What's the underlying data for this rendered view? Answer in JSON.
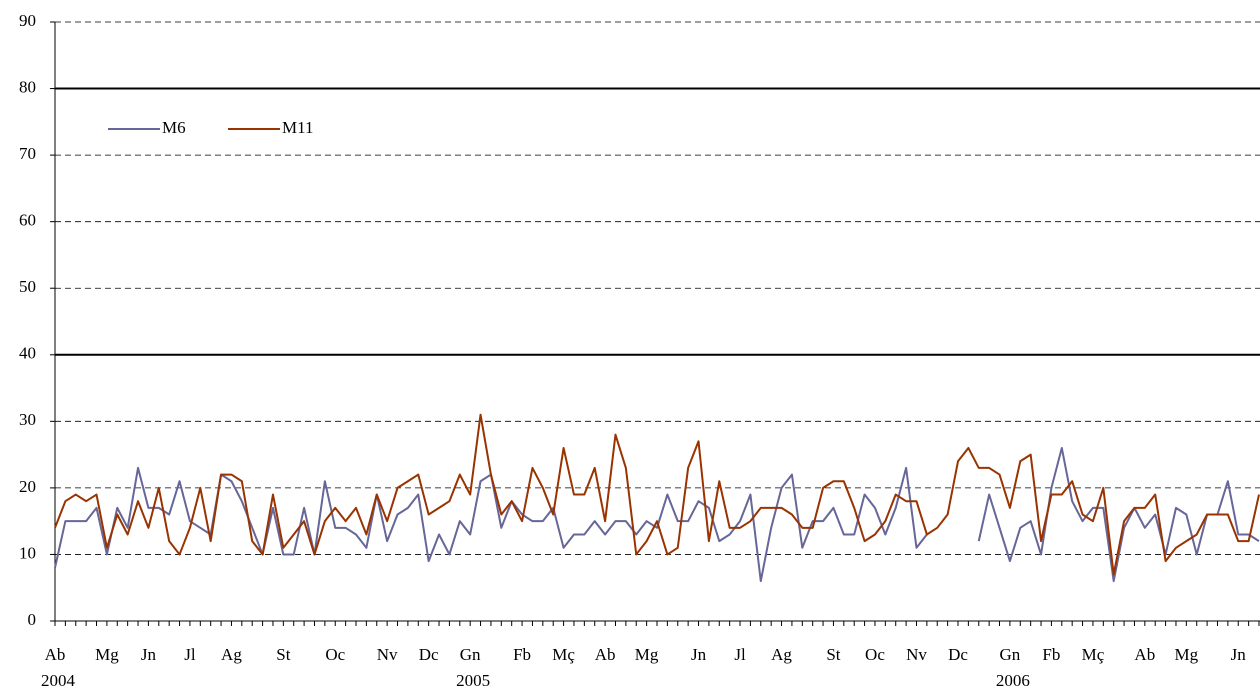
{
  "chart_data": {
    "type": "line",
    "categories": [
      "Ab",
      null,
      null,
      null,
      null,
      "Mg",
      null,
      null,
      null,
      "Jn",
      null,
      null,
      null,
      "Jl",
      null,
      null,
      null,
      "Ag",
      null,
      null,
      null,
      null,
      "St",
      null,
      null,
      null,
      null,
      "Oc",
      null,
      null,
      null,
      null,
      "Nv",
      null,
      null,
      null,
      "Dc",
      null,
      null,
      null,
      "Gn",
      null,
      null,
      null,
      null,
      "Fb",
      null,
      null,
      null,
      "Mç",
      null,
      null,
      null,
      "Ab",
      null,
      null,
      null,
      "Mg",
      null,
      null,
      null,
      null,
      "Jn",
      null,
      null,
      null,
      "Jl",
      null,
      null,
      null,
      "Ag",
      null,
      null,
      null,
      null,
      "St",
      null,
      null,
      null,
      "Oc",
      null,
      null,
      null,
      "Nv",
      null,
      null,
      null,
      "Dc",
      null,
      null,
      null,
      null,
      "Gn",
      null,
      null,
      null,
      "Fb",
      null,
      null,
      null,
      "Mç",
      null,
      null,
      null,
      null,
      "Ab",
      null,
      null,
      null,
      "Mg",
      null,
      null,
      null,
      null,
      "Jn",
      null,
      null
    ],
    "years": [
      "2004",
      null,
      null,
      null,
      null,
      null,
      null,
      null,
      null,
      null,
      null,
      null,
      null,
      null,
      null,
      null,
      null,
      null,
      null,
      null,
      null,
      null,
      null,
      null,
      null,
      null,
      null,
      null,
      null,
      null,
      null,
      null,
      null,
      null,
      null,
      null,
      null,
      null,
      null,
      null,
      "2005",
      null,
      null,
      null,
      null,
      null,
      null,
      null,
      null,
      null,
      null,
      null,
      null,
      null,
      null,
      null,
      null,
      null,
      null,
      null,
      null,
      null,
      null,
      null,
      null,
      null,
      null,
      null,
      null,
      null,
      null,
      null,
      null,
      null,
      null,
      null,
      null,
      null,
      null,
      null,
      null,
      null,
      null,
      null,
      null,
      null,
      null,
      null,
      null,
      null,
      null,
      null,
      "2006",
      null,
      null,
      null,
      null,
      null,
      null,
      null,
      null,
      null,
      null,
      null,
      null,
      null,
      null,
      null,
      null,
      null,
      null,
      null,
      null,
      null,
      null,
      null,
      null
    ],
    "series": [
      {
        "name": "M6",
        "color": "#666699",
        "values": [
          8,
          15,
          15,
          15,
          17,
          10,
          17,
          14,
          23,
          17,
          17,
          16,
          21,
          15,
          14,
          13,
          22,
          21,
          18,
          14,
          10,
          17,
          10,
          10,
          17,
          10,
          21,
          14,
          14,
          13,
          11,
          19,
          12,
          16,
          17,
          19,
          9,
          13,
          10,
          15,
          13,
          21,
          22,
          14,
          18,
          16,
          15,
          15,
          17,
          11,
          13,
          13,
          15,
          13,
          15,
          15,
          13,
          15,
          14,
          19,
          15,
          15,
          18,
          17,
          12,
          13,
          15,
          19,
          6,
          14,
          20,
          22,
          11,
          15,
          15,
          17,
          13,
          13,
          19,
          17,
          13,
          17,
          23,
          11,
          13,
          null,
          null,
          null,
          null,
          12,
          19,
          14,
          9,
          14,
          15,
          10,
          20,
          26,
          18,
          15,
          17,
          17,
          6,
          14,
          17,
          14,
          16,
          10,
          17,
          16,
          10,
          16,
          16,
          21,
          13,
          13,
          12
        ]
      },
      {
        "name": "M11",
        "color": "#993300",
        "values": [
          14,
          18,
          19,
          18,
          19,
          11,
          16,
          13,
          18,
          14,
          20,
          12,
          10,
          14,
          20,
          12,
          22,
          22,
          21,
          12,
          10,
          19,
          11,
          13,
          15,
          10,
          15,
          17,
          15,
          17,
          13,
          19,
          15,
          20,
          21,
          22,
          16,
          17,
          18,
          22,
          19,
          31,
          22,
          16,
          18,
          15,
          23,
          20,
          16,
          26,
          19,
          19,
          23,
          15,
          28,
          23,
          10,
          12,
          15,
          10,
          11,
          23,
          27,
          12,
          21,
          14,
          14,
          15,
          17,
          17,
          17,
          16,
          14,
          14,
          20,
          21,
          21,
          17,
          12,
          13,
          15,
          19,
          18,
          18,
          13,
          14,
          16,
          24,
          26,
          23,
          23,
          22,
          17,
          24,
          25,
          12,
          19,
          19,
          21,
          16,
          15,
          20,
          7,
          15,
          17,
          17,
          19,
          9,
          11,
          12,
          13,
          16,
          16,
          16,
          12,
          12,
          19
        ]
      }
    ],
    "ylim": [
      0,
      90
    ],
    "yticks": [
      0,
      10,
      20,
      30,
      40,
      50,
      60,
      70,
      80,
      90
    ],
    "hlines": [
      40,
      80
    ],
    "grid": true,
    "legend": "top-left"
  }
}
